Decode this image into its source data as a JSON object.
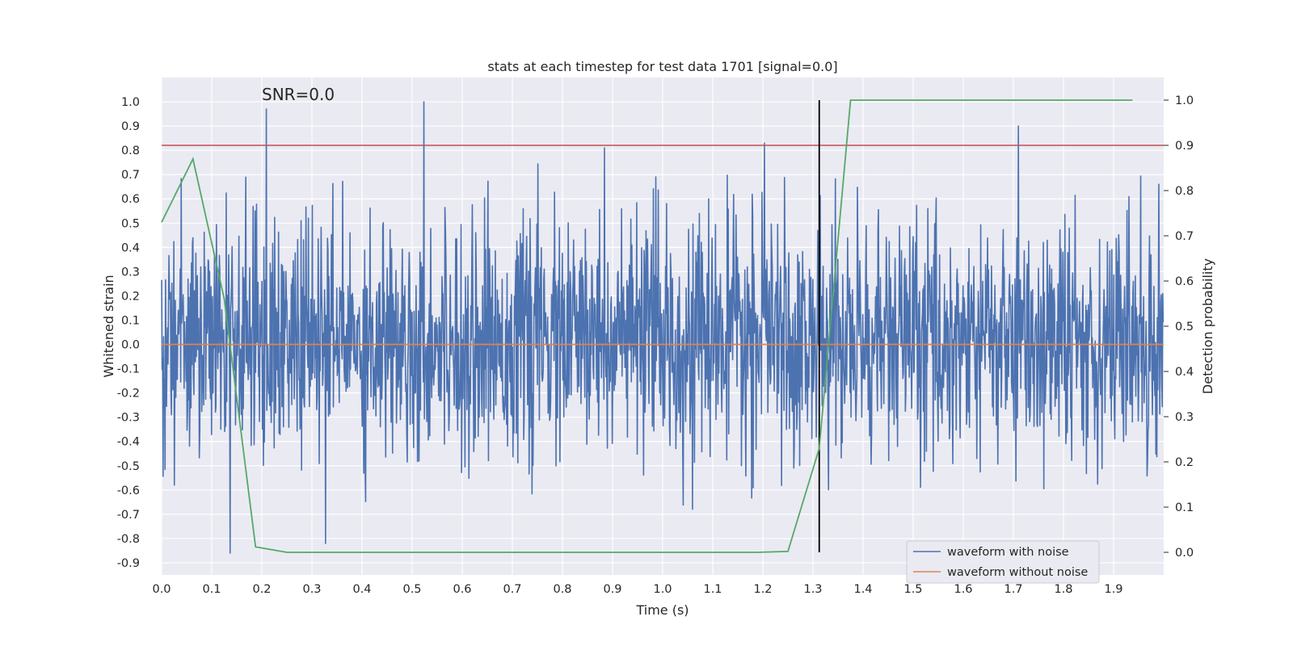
{
  "chart_data": {
    "type": "line",
    "title": "stats at each timestep for test data 1701 [signal=0.0]",
    "xlabel": "Time (s)",
    "ylabel": "Whitened strain",
    "y2label": "Detection probability",
    "annotation": "SNR=0.0",
    "xlim": [
      0.0,
      2.0
    ],
    "ylim": [
      -0.95,
      1.1
    ],
    "y2lim": [
      -0.05,
      1.05
    ],
    "xticks": [
      "0.0",
      "0.1",
      "0.2",
      "0.3",
      "0.4",
      "0.5",
      "0.6",
      "0.7",
      "0.8",
      "0.9",
      "1.0",
      "1.1",
      "1.2",
      "1.3",
      "1.4",
      "1.5",
      "1.6",
      "1.7",
      "1.8",
      "1.9"
    ],
    "yticks": [
      "-0.9",
      "-0.8",
      "-0.7",
      "-0.6",
      "-0.5",
      "-0.4",
      "-0.3",
      "-0.2",
      "-0.1",
      "0.0",
      "0.1",
      "0.2",
      "0.3",
      "0.4",
      "0.5",
      "0.6",
      "0.7",
      "0.8",
      "0.9",
      "1.0"
    ],
    "y2ticks": [
      "0.0",
      "0.1",
      "0.2",
      "0.3",
      "0.4",
      "0.5",
      "0.6",
      "0.7",
      "0.8",
      "0.9",
      "1.0"
    ],
    "grid": true,
    "legend_position": "bottom-right",
    "series": [
      {
        "name": "waveform with noise",
        "color": "#4c72b0",
        "description": "dense random noise, roughly between -0.85 and 1.0",
        "peaks": [
          {
            "x": 0.137,
            "y": -0.86
          },
          {
            "x": 0.209,
            "y": 0.97
          },
          {
            "x": 0.523,
            "y": 1.0
          },
          {
            "x": 0.884,
            "y": 0.81
          },
          {
            "x": 1.203,
            "y": 0.83
          },
          {
            "x": 1.71,
            "y": 0.9
          },
          {
            "x": 0.327,
            "y": -0.82
          }
        ]
      },
      {
        "name": "waveform without noise",
        "color": "#dd8452",
        "x": [
          0.0,
          2.0
        ],
        "y": [
          0.0,
          0.0
        ]
      }
    ],
    "probability_series": {
      "name": "detection probability",
      "color": "#55a868",
      "axis": "right",
      "x": [
        0.0,
        0.0625,
        0.125,
        0.1875,
        0.25,
        0.3125,
        1.1875,
        1.25,
        1.3125,
        1.375,
        1.9375
      ],
      "y": [
        0.73,
        0.87,
        0.56,
        0.012,
        0.0,
        0.0,
        0.0,
        0.002,
        0.23,
        1.0,
        1.0
      ]
    },
    "threshold_line": {
      "value": 0.9,
      "axis": "right",
      "color": "#c44e52"
    },
    "vertical_line": {
      "x": 1.3125,
      "y2_from": 0.0,
      "y2_to": 1.0,
      "color": "#000000"
    }
  }
}
